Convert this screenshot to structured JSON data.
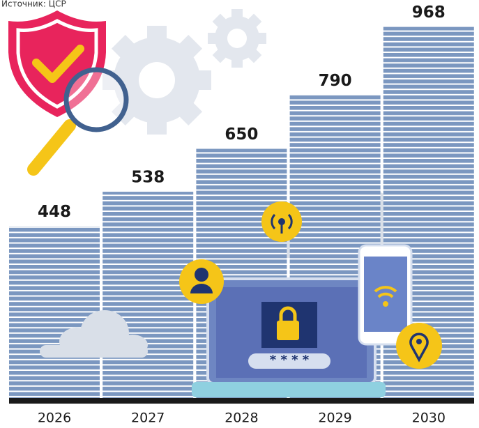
{
  "chart_data": {
    "type": "bar",
    "source": "Источник: ЦСР",
    "categories": [
      "2026",
      "2027",
      "2028",
      "2029",
      "2030"
    ],
    "values": [
      448,
      538,
      650,
      790,
      968
    ],
    "color": "#7b97c0"
  }
}
